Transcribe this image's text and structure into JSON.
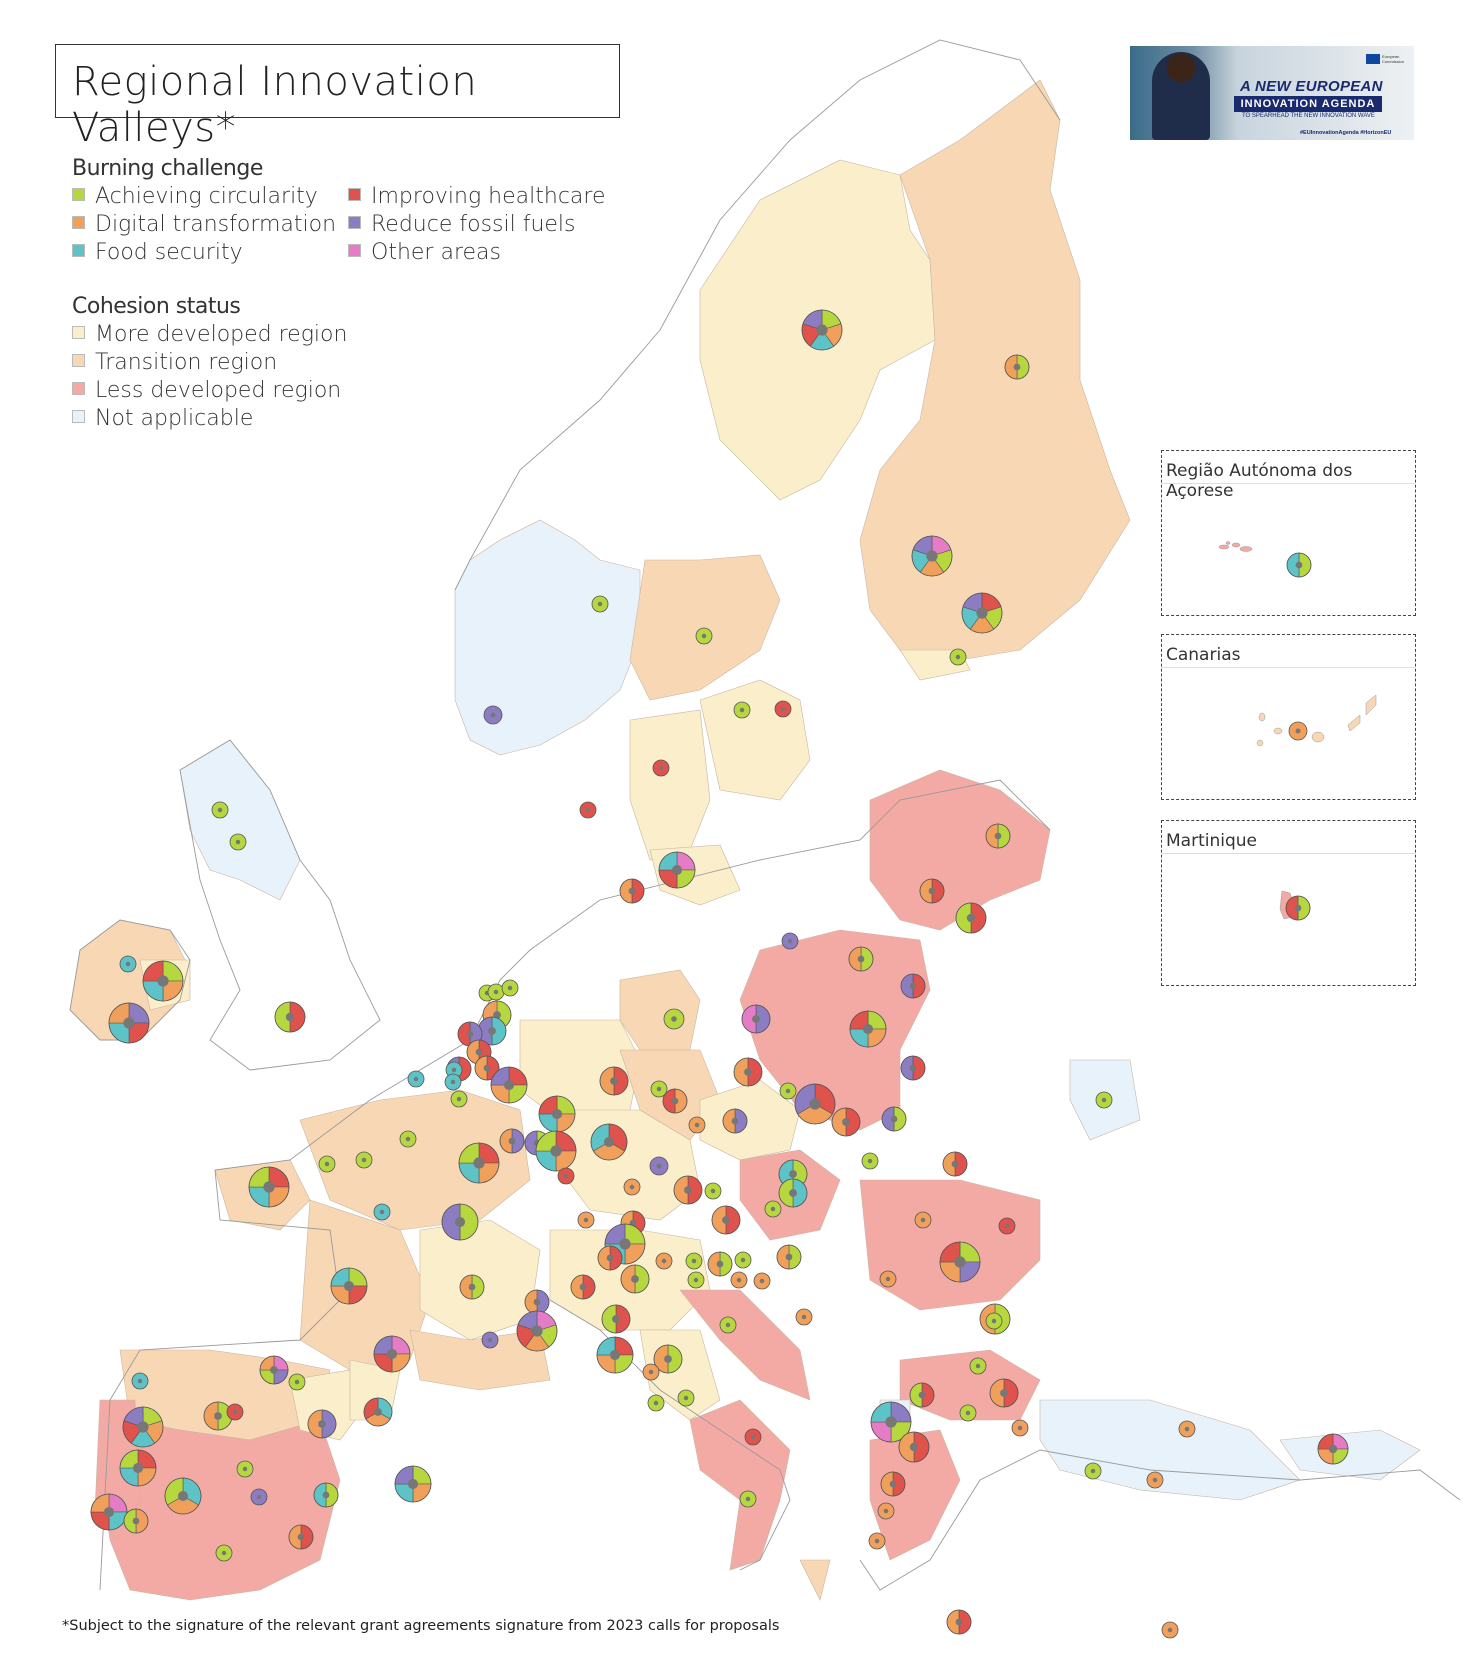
{
  "title": "Regional Innovation Valleys*",
  "colors": {
    "achieving_circularity": "#b6d83e",
    "digital_transformation": "#f0a05a",
    "food_security": "#5ec3c7",
    "improving_healthcare": "#e0524c",
    "reduce_fossil_fuels": "#8c7dc3",
    "other_areas": "#e67cc6",
    "more_developed": "#fbeecb",
    "transition": "#f8d8b4",
    "less_developed": "#f3aaa5",
    "not_applicable": "#e7f2fb"
  },
  "legend": {
    "burning_challenge": {
      "heading": "Burning challenge",
      "items": [
        {
          "label": "Achieving circularity",
          "color": "#b6d83e"
        },
        {
          "label": "Digital transformation",
          "color": "#f0a05a"
        },
        {
          "label": "Food security",
          "color": "#5ec3c7"
        },
        {
          "label": "Improving healthcare",
          "color": "#e0524c"
        },
        {
          "label": "Reduce fossil fuels",
          "color": "#8c7dc3"
        },
        {
          "label": "Other areas",
          "color": "#e67cc6"
        }
      ]
    },
    "cohesion_status": {
      "heading": "Cohesion status",
      "items": [
        {
          "label": "More developed region",
          "color": "#fbeecb"
        },
        {
          "label": "Transition region",
          "color": "#f8d8b4"
        },
        {
          "label": "Less developed region",
          "color": "#f3aaa5"
        },
        {
          "label": "Not applicable",
          "color": "#e7f2fb"
        }
      ]
    }
  },
  "banner": {
    "line1": "A NEW EUROPEAN",
    "line2": "INNOVATION AGENDA",
    "line3": "TO SPEARHEAD THE NEW INNOVATION WAVE",
    "line4": "#EUInnovationAgenda   #HorizonEU",
    "issuer": "European Commission"
  },
  "insets": [
    {
      "label": "Região Autónoma dos Açorese"
    },
    {
      "label": "Canarias"
    },
    {
      "label": "Martinique"
    }
  ],
  "footnote": "*Subject to the signature of the relevant grant agreements signature from 2023 calls for proposals"
}
